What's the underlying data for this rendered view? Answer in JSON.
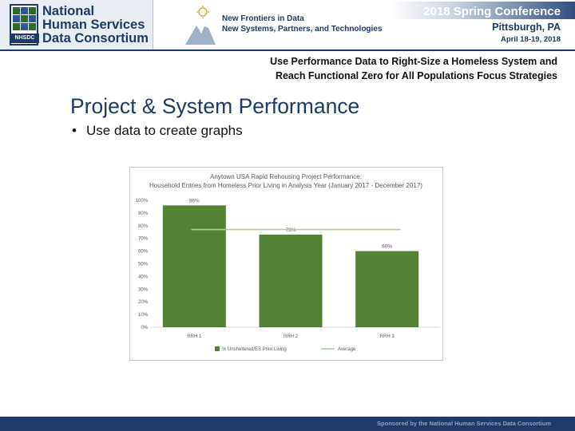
{
  "header": {
    "org_line1": "National",
    "org_line2": "Human Services",
    "org_line3": "Data Consortium",
    "logo_tag": "NHSDC",
    "conference_theme": "New Frontiers in Data",
    "conference_subtheme": "New Systems, Partners, and Technologies",
    "conference_title": "2018 Spring Conference",
    "conference_city": "Pittsburgh, PA",
    "conference_dates": "April 18-19, 2018"
  },
  "slide": {
    "subtitle": "Use Performance Data to Right-Size a Homeless System and Reach Functional Zero for All Populations Focus Strategies",
    "title": "Project & System Performance",
    "bullet": "Use data to create graphs"
  },
  "footer": {
    "text": "Sponsored by the National Human Services Data Consortium"
  },
  "colors": {
    "brand_navy": "#1f3a66",
    "bar_green": "#548235",
    "average_line": "#a9d18e"
  },
  "chart_data": {
    "type": "bar",
    "title": "Anytown USA Rapid Rehousing Project Performance: Household Entries from Homeless Prior Living in Analysis Year (January 2017 - December 2017)",
    "categories": [
      "RRH 1",
      "RRH 2",
      "RRH 3"
    ],
    "series": [
      {
        "name": "% Unsheltered/ES Prior Living",
        "values": [
          96,
          73,
          60
        ],
        "kind": "bar",
        "color": "#548235"
      },
      {
        "name": "Average",
        "values": [
          77,
          77,
          77
        ],
        "kind": "line",
        "color": "#a9d18e"
      }
    ],
    "data_labels": [
      "96%",
      "73%",
      "60%"
    ],
    "y_ticks": [
      "0%",
      "10%",
      "20%",
      "30%",
      "40%",
      "50%",
      "60%",
      "70%",
      "80%",
      "90%",
      "100%"
    ],
    "ylim": [
      0,
      100
    ],
    "legend_position": "bottom",
    "grid": false
  }
}
